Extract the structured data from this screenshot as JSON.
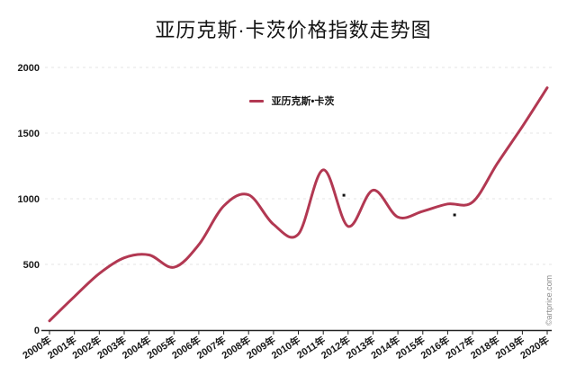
{
  "title": "亚历克斯·卡茨价格指数走势图",
  "legend": {
    "label": "亚历克斯•卡茨"
  },
  "watermark": "©artprice.com",
  "colors": {
    "line": "#b23852",
    "grid": "#e4e4e4",
    "axis": "#222222",
    "text": "#1a1a1a",
    "watermark": "#8c8c8c",
    "background": "#ffffff"
  },
  "chart_data": {
    "type": "line",
    "title": "亚历克斯·卡茨价格指数走势图",
    "categories": [
      "2000年",
      "2001年",
      "2002年",
      "2003年",
      "2004年",
      "2005年",
      "2006年",
      "2007年",
      "2008年",
      "2009年",
      "2010年",
      "2011年",
      "2012年",
      "2013年",
      "2014年",
      "2015年",
      "2016年",
      "2017年",
      "2018年",
      "2019年",
      "2020年"
    ],
    "series": [
      {
        "name": "亚历克斯•卡茨",
        "color": "#b23852",
        "values": [
          70,
          255,
          430,
          550,
          572,
          478,
          650,
          945,
          1030,
          805,
          730,
          1220,
          790,
          1065,
          860,
          905,
          960,
          975,
          1270,
          1550,
          1845
        ]
      }
    ],
    "xlabel": "",
    "ylabel": "",
    "ylim": [
      0,
      2000
    ],
    "yticks": [
      0,
      500,
      1000,
      1500,
      2000
    ],
    "grid": "horizontal-dashed",
    "legend_position": "top-center",
    "smooth": true
  },
  "stray_marks": [
    {
      "year_index": 11.83,
      "value": 1027
    },
    {
      "year_index": 16.28,
      "value": 877
    }
  ]
}
